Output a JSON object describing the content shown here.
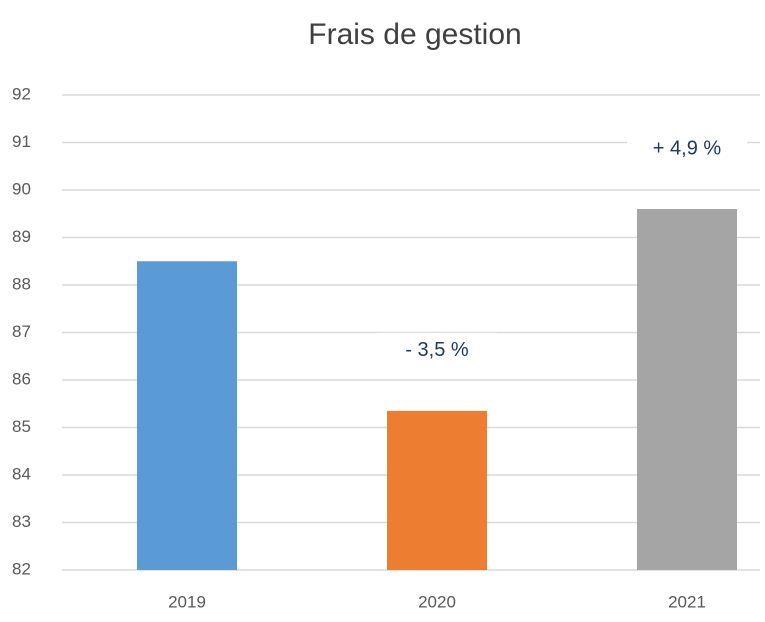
{
  "chart_data": {
    "type": "bar",
    "title": "Frais de gestion",
    "categories": [
      "2019",
      "2020",
      "2021"
    ],
    "values": [
      88.5,
      85.35,
      89.6
    ],
    "colors": [
      "#5b9bd5",
      "#ed7d31",
      "#a5a5a5"
    ],
    "ylim": [
      82,
      92
    ],
    "yticks": [
      82,
      83,
      84,
      85,
      86,
      87,
      88,
      89,
      90,
      91,
      92
    ],
    "grid": true,
    "annotations": [
      {
        "x": "2020",
        "text": "- 3,5 %"
      },
      {
        "x": "2021",
        "text": "+ 4,9 %"
      }
    ]
  }
}
